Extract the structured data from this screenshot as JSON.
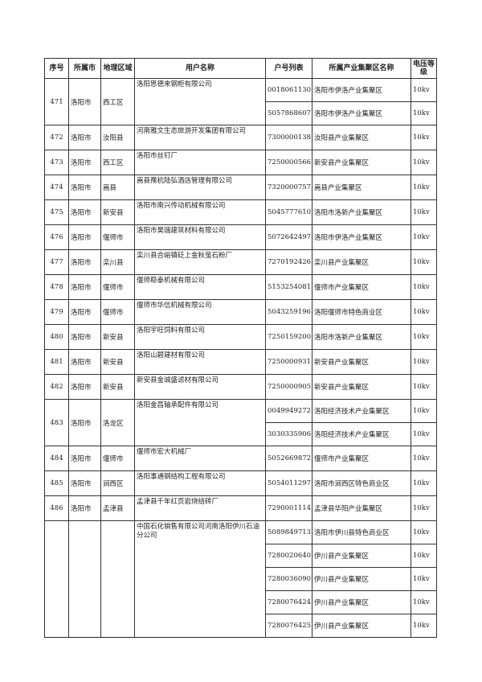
{
  "headers": [
    "序号",
    "所属市",
    "地理区域",
    "用户名称",
    "户号列表",
    "所属产业集聚区名称",
    "电压等级"
  ],
  "rows": [
    {
      "no": "471",
      "city": "洛阳市",
      "district": "西工区",
      "name": "洛阳思德来钢柜有限公司",
      "accounts": [
        {
          "id": "0018061130",
          "zone": "洛阳市伊洛产业集聚区",
          "voltage": "10kv"
        },
        {
          "id": "5057868607",
          "zone": "洛阳市伊洛产业集聚区",
          "voltage": "10kv"
        }
      ]
    },
    {
      "no": "472",
      "city": "洛阳市",
      "district": "汝阳县",
      "name": "河南雅文生态旅游开发集团有限公司",
      "accounts": [
        {
          "id": "7300000138",
          "zone": "汝阳县产业集聚区",
          "voltage": "10kv"
        }
      ]
    },
    {
      "no": "473",
      "city": "洛阳市",
      "district": "西工区",
      "name": "洛阳市丝钉厂",
      "accounts": [
        {
          "id": "7250000566",
          "zone": "新安县产业集聚区",
          "voltage": "10kv"
        }
      ]
    },
    {
      "no": "474",
      "city": "洛阳市",
      "district": "嵩县",
      "name": "嵩县豫杭陆弘酒店管理有限公司",
      "accounts": [
        {
          "id": "7320000757",
          "zone": "嵩县产业集聚区",
          "voltage": "10kv"
        }
      ]
    },
    {
      "no": "475",
      "city": "洛阳市",
      "district": "新安县",
      "name": "洛阳市南兴传动机械有限公司",
      "accounts": [
        {
          "id": "5045777610",
          "zone": "洛阳市洛新产业集聚区",
          "voltage": "10kv"
        }
      ]
    },
    {
      "no": "476",
      "city": "洛阳市",
      "district": "偃师市",
      "name": "洛阳市昊瑞建筑材料有限公司",
      "accounts": [
        {
          "id": "5072642497",
          "zone": "洛阳市伊洛产业集聚区",
          "voltage": "10kv"
        }
      ]
    },
    {
      "no": "477",
      "city": "洛阳市",
      "district": "栾川县",
      "name": "栾川县合峪镇砭上金秋萤石粉厂",
      "accounts": [
        {
          "id": "7270192426",
          "zone": "栾川县产业集聚区",
          "voltage": "10kv"
        }
      ]
    },
    {
      "no": "478",
      "city": "洛阳市",
      "district": "偃师市",
      "name": "偃师稳泰机械有限公司",
      "accounts": [
        {
          "id": "5153254081",
          "zone": "偃师市产业集聚区",
          "voltage": "10kv"
        }
      ]
    },
    {
      "no": "479",
      "city": "洛阳市",
      "district": "偃师市",
      "name": "偃师市华信机械有限公司",
      "accounts": [
        {
          "id": "5043259196",
          "zone": "洛阳偃师市特色商业区",
          "voltage": "10kv"
        }
      ]
    },
    {
      "no": "480",
      "city": "洛阳市",
      "district": "新安县",
      "name": "洛阳宇旺饲料有限公司",
      "accounts": [
        {
          "id": "7250159200",
          "zone": "洛阳市洛新产业集聚区",
          "voltage": "10kv"
        }
      ]
    },
    {
      "no": "481",
      "city": "洛阳市",
      "district": "新安县",
      "name": "洛阳山碧建材有限公司",
      "accounts": [
        {
          "id": "7250000931",
          "zone": "新安县产业集聚区",
          "voltage": "10kv"
        }
      ]
    },
    {
      "no": "482",
      "city": "洛阳市",
      "district": "新安县",
      "name": "新安县金诚盛滤材有限公司",
      "accounts": [
        {
          "id": "7250000905",
          "zone": "新安县产业集聚区",
          "voltage": "10kv"
        }
      ]
    },
    {
      "no": "483",
      "city": "洛阳市",
      "district": "洛龙区",
      "name": "洛阳金昌轴承配件有限公司",
      "accounts": [
        {
          "id": "0049949272",
          "zone": "洛阳经济技术产业集聚区",
          "voltage": "10kv"
        },
        {
          "id": "3030335906",
          "zone": "洛阳经济技术产业集聚区",
          "voltage": "10kv"
        }
      ]
    },
    {
      "no": "484",
      "city": "洛阳市",
      "district": "偃师市",
      "name": "偃师市宏大机械厂",
      "accounts": [
        {
          "id": "5052669872",
          "zone": "偃师市产业集聚区",
          "voltage": "10kv"
        }
      ]
    },
    {
      "no": "485",
      "city": "洛阳市",
      "district": "涧西区",
      "name": "洛阳事通钢结构工程有限公司",
      "accounts": [
        {
          "id": "5054011297",
          "zone": "洛阳市涧西区特色商业区",
          "voltage": "10kv"
        }
      ]
    },
    {
      "no": "486",
      "city": "洛阳市",
      "district": "孟津县",
      "name": "孟津县千年红页岩烧结砖厂",
      "accounts": [
        {
          "id": "7290001114",
          "zone": "孟津县华阳产业集聚区",
          "voltage": "10kv"
        }
      ]
    },
    {
      "no": "",
      "city": "",
      "district": "",
      "name": "中国石化销售有限公司河南洛阳伊川石油分公司",
      "accounts": [
        {
          "id": "5089849713",
          "zone": "洛阳市伊川县特色商业区",
          "voltage": "10kv"
        },
        {
          "id": "7280020640",
          "zone": "伊川县产业集聚区",
          "voltage": "10kv"
        },
        {
          "id": "7280036090",
          "zone": "伊川县产业集聚区",
          "voltage": "10kv"
        },
        {
          "id": "7280076424",
          "zone": "伊川县产业集聚区",
          "voltage": "10kv"
        },
        {
          "id": "7280076425",
          "zone": "伊川县产业集聚区",
          "voltage": "10kv"
        }
      ]
    }
  ]
}
